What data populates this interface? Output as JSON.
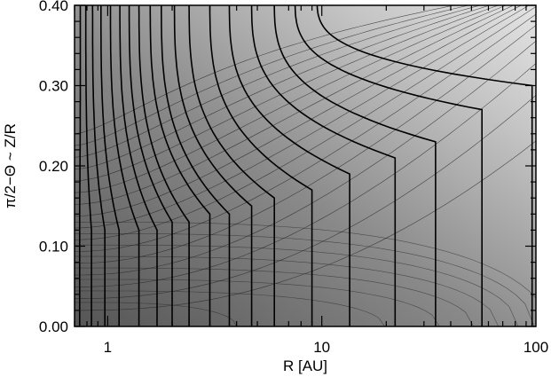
{
  "chart_data": {
    "type": "contour",
    "title": "",
    "xlabel": "R [AU]",
    "ylabel": "π/2−Θ ~ Z/R",
    "x_scale": "log",
    "xlim": [
      0.7,
      100
    ],
    "ylim": [
      0,
      0.4
    ],
    "x_ticks": [
      {
        "value": 1,
        "label": "1"
      },
      {
        "value": 10,
        "label": "10"
      },
      {
        "value": 100,
        "label": "100"
      }
    ],
    "y_ticks": [
      {
        "value": 0.0,
        "label": "0.00"
      },
      {
        "value": 0.1,
        "label": "0.10"
      },
      {
        "value": 0.2,
        "label": "0.20"
      },
      {
        "value": 0.3,
        "label": "0.30"
      },
      {
        "value": 0.4,
        "label": "0.40"
      }
    ],
    "colors": {
      "dark_fill": "#5d5d5d",
      "light_fill": "#f2f2f2",
      "contour_line": "#000000"
    },
    "thick_contours": {
      "description_free_params": true,
      "lines": [
        {
          "r_base": 0.74,
          "r_top": 0.745,
          "z_base": 0.15
        },
        {
          "r_base": 0.84,
          "r_top": 0.79,
          "z_base": 0.12
        },
        {
          "r_base": 0.97,
          "r_top": 0.85,
          "z_base": 0.12
        },
        {
          "r_base": 1.13,
          "r_top": 0.93,
          "z_base": 0.12
        },
        {
          "r_base": 1.4,
          "r_top": 1.03,
          "z_base": 0.12
        },
        {
          "r_base": 1.7,
          "r_top": 1.14,
          "z_base": 0.12
        },
        {
          "r_base": 2.0,
          "r_top": 1.26,
          "z_base": 0.13
        },
        {
          "r_base": 2.4,
          "r_top": 1.4,
          "z_base": 0.13
        },
        {
          "r_base": 3.0,
          "r_top": 1.58,
          "z_base": 0.14
        },
        {
          "r_base": 3.7,
          "r_top": 1.78,
          "z_base": 0.14
        },
        {
          "r_base": 4.7,
          "r_top": 2.05,
          "z_base": 0.15
        },
        {
          "r_base": 6.0,
          "r_top": 2.4,
          "z_base": 0.16
        },
        {
          "r_base": 9.0,
          "r_top": 3.0,
          "z_base": 0.17
        },
        {
          "r_base": 13.5,
          "r_top": 3.7,
          "z_base": 0.19
        },
        {
          "r_base": 22.0,
          "r_top": 4.7,
          "z_base": 0.21
        },
        {
          "r_base": 34.0,
          "r_top": 6.0,
          "z_base": 0.23
        },
        {
          "r_base": 56.0,
          "r_top": 7.5,
          "z_base": 0.27
        },
        {
          "r_base": 96.0,
          "r_top": 9.5,
          "z_base": 0.3
        }
      ]
    },
    "thin_contours": {
      "count": 16
    }
  }
}
